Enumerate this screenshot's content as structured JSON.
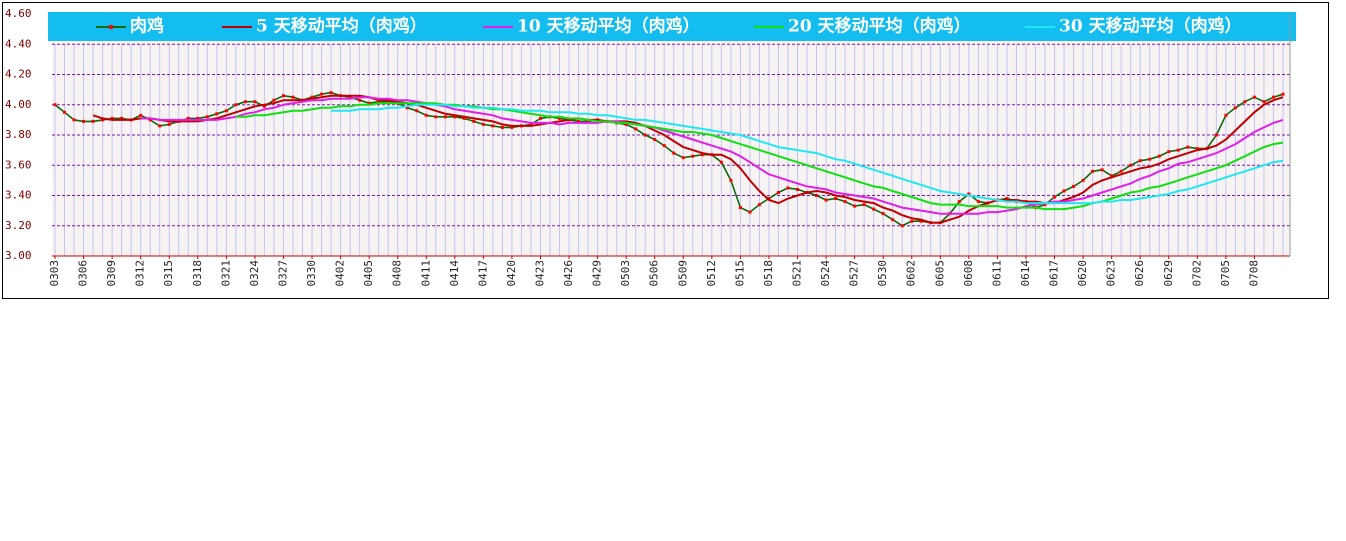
{
  "chart_data": {
    "type": "line",
    "categories": [
      "0303",
      null,
      null,
      "0306",
      null,
      null,
      "0309",
      null,
      null,
      "0312",
      null,
      null,
      "0315",
      null,
      null,
      "0318",
      null,
      null,
      "0321",
      null,
      null,
      "0324",
      null,
      null,
      "0327",
      null,
      null,
      "0330",
      null,
      null,
      "0402",
      null,
      null,
      "0405",
      null,
      null,
      "0408",
      null,
      null,
      "0411",
      null,
      null,
      "0414",
      null,
      null,
      "0417",
      null,
      null,
      "0420",
      null,
      null,
      "0423",
      null,
      null,
      "0426",
      null,
      null,
      "0429",
      null,
      null,
      "0503",
      null,
      null,
      "0506",
      null,
      null,
      "0509",
      null,
      null,
      "0512",
      null,
      null,
      "0515",
      null,
      null,
      "0518",
      null,
      null,
      "0521",
      null,
      null,
      "0524",
      null,
      null,
      "0527",
      null,
      null,
      "0530",
      null,
      null,
      "0602",
      null,
      null,
      "0605",
      null,
      null,
      "0608",
      null,
      null,
      "0611",
      null,
      null,
      "0614",
      null,
      null,
      "0617",
      null,
      null,
      "0620",
      null,
      null,
      "0623",
      null,
      null,
      "0626",
      null,
      null,
      "0629",
      null,
      null,
      "0702",
      null,
      null,
      "0705",
      null,
      null,
      "0708",
      null,
      null,
      null
    ],
    "ylim": [
      3.0,
      4.6
    ],
    "yticks": [
      {
        "value": 3.0,
        "label": "3.00"
      },
      {
        "value": 3.2,
        "label": "3.20"
      },
      {
        "value": 3.4,
        "label": "3.40"
      },
      {
        "value": 3.6,
        "label": "3.60"
      },
      {
        "value": 3.8,
        "label": "3.80"
      },
      {
        "value": 4.0,
        "label": "4.00"
      },
      {
        "value": 4.2,
        "label": "4.20"
      },
      {
        "value": 4.4,
        "label": "4.40"
      },
      {
        "value": 4.6,
        "label": "4.60"
      }
    ],
    "grid": true,
    "series": [
      {
        "name": "肉鸡",
        "color": "#0a6a0a",
        "marker_color": "#ff0000",
        "values": [
          4.0,
          3.95,
          3.9,
          3.89,
          3.89,
          3.9,
          3.91,
          3.91,
          3.9,
          3.93,
          3.9,
          3.86,
          3.87,
          3.89,
          3.91,
          3.91,
          3.92,
          3.94,
          3.96,
          4.0,
          4.02,
          4.02,
          3.99,
          4.03,
          4.06,
          4.05,
          4.03,
          4.05,
          4.07,
          4.08,
          4.06,
          4.05,
          4.03,
          4.01,
          4.02,
          4.02,
          4.01,
          3.98,
          3.96,
          3.93,
          3.92,
          3.92,
          3.92,
          3.91,
          3.89,
          3.87,
          3.86,
          3.85,
          3.85,
          3.86,
          3.87,
          3.91,
          3.92,
          3.91,
          3.9,
          3.89,
          3.89,
          3.9,
          3.89,
          3.88,
          3.87,
          3.84,
          3.8,
          3.77,
          3.73,
          3.68,
          3.65,
          3.66,
          3.67,
          3.67,
          3.62,
          3.5,
          3.32,
          3.29,
          3.34,
          3.38,
          3.42,
          3.45,
          3.44,
          3.42,
          3.4,
          3.37,
          3.38,
          3.36,
          3.33,
          3.34,
          3.31,
          3.28,
          3.24,
          3.2,
          3.23,
          3.23,
          3.22,
          3.22,
          3.28,
          3.36,
          3.41,
          3.36,
          3.35,
          3.37,
          3.38,
          3.36,
          3.36,
          3.32,
          3.34,
          3.39,
          3.43,
          3.46,
          3.5,
          3.56,
          3.57,
          3.53,
          3.56,
          3.6,
          3.63,
          3.64,
          3.66,
          3.69,
          3.7,
          3.72,
          3.71,
          3.71,
          3.8,
          3.93,
          3.98,
          4.02,
          4.05,
          4.02,
          4.05,
          4.07
        ]
      },
      {
        "name": "5 天移动平均（肉鸡）",
        "color": "#c00000",
        "values": [
          null,
          null,
          null,
          null,
          3.93,
          3.91,
          3.9,
          3.9,
          3.9,
          3.91,
          3.91,
          3.9,
          3.89,
          3.89,
          3.89,
          3.89,
          3.9,
          3.91,
          3.93,
          3.95,
          3.97,
          3.99,
          4.0,
          4.01,
          4.03,
          4.03,
          4.03,
          4.04,
          4.05,
          4.06,
          4.06,
          4.06,
          4.06,
          4.05,
          4.03,
          4.03,
          4.02,
          4.01,
          4.0,
          3.98,
          3.96,
          3.94,
          3.93,
          3.92,
          3.91,
          3.9,
          3.89,
          3.87,
          3.86,
          3.86,
          3.86,
          3.87,
          3.88,
          3.89,
          3.9,
          3.91,
          3.9,
          3.9,
          3.89,
          3.89,
          3.89,
          3.88,
          3.86,
          3.83,
          3.8,
          3.76,
          3.72,
          3.7,
          3.68,
          3.67,
          3.67,
          3.64,
          3.58,
          3.5,
          3.43,
          3.37,
          3.35,
          3.38,
          3.4,
          3.42,
          3.43,
          3.42,
          3.4,
          3.39,
          3.37,
          3.36,
          3.35,
          3.32,
          3.3,
          3.27,
          3.25,
          3.24,
          3.22,
          3.22,
          3.24,
          3.26,
          3.3,
          3.33,
          3.35,
          3.37,
          3.37,
          3.37,
          3.36,
          3.36,
          3.35,
          3.35,
          3.37,
          3.39,
          3.42,
          3.47,
          3.5,
          3.52,
          3.54,
          3.56,
          3.58,
          3.59,
          3.61,
          3.64,
          3.66,
          3.68,
          3.7,
          3.71,
          3.73,
          3.77,
          3.83,
          3.89,
          3.95,
          4.0,
          4.03,
          4.05
        ]
      },
      {
        "name": "10 天移动平均（肉鸡）",
        "color": "#e020e8",
        "values": [
          null,
          null,
          null,
          null,
          null,
          null,
          null,
          null,
          null,
          3.91,
          3.91,
          3.9,
          3.9,
          3.9,
          3.9,
          3.9,
          3.9,
          3.9,
          3.91,
          3.92,
          3.94,
          3.95,
          3.97,
          3.98,
          4.0,
          4.01,
          4.02,
          4.03,
          4.03,
          4.04,
          4.04,
          4.04,
          4.05,
          4.05,
          4.04,
          4.04,
          4.03,
          4.03,
          4.02,
          4.01,
          4.0,
          3.99,
          3.97,
          3.96,
          3.95,
          3.94,
          3.93,
          3.91,
          3.9,
          3.89,
          3.88,
          3.88,
          3.88,
          3.87,
          3.88,
          3.88,
          3.88,
          3.88,
          3.89,
          3.89,
          3.88,
          3.87,
          3.86,
          3.85,
          3.83,
          3.81,
          3.79,
          3.77,
          3.75,
          3.73,
          3.71,
          3.69,
          3.66,
          3.62,
          3.58,
          3.54,
          3.52,
          3.5,
          3.48,
          3.46,
          3.45,
          3.44,
          3.42,
          3.41,
          3.4,
          3.39,
          3.38,
          3.36,
          3.34,
          3.32,
          3.31,
          3.3,
          3.29,
          3.28,
          3.28,
          3.28,
          3.28,
          3.28,
          3.29,
          3.29,
          3.3,
          3.31,
          3.33,
          3.34,
          3.35,
          3.36,
          3.36,
          3.37,
          3.38,
          3.4,
          3.42,
          3.44,
          3.46,
          3.48,
          3.51,
          3.53,
          3.56,
          3.58,
          3.61,
          3.62,
          3.64,
          3.66,
          3.68,
          3.71,
          3.74,
          3.78,
          3.82,
          3.85,
          3.88,
          3.9
        ]
      },
      {
        "name": "20 天移动平均（肉鸡）",
        "color": "#10e010",
        "values": [
          null,
          null,
          null,
          null,
          null,
          null,
          null,
          null,
          null,
          null,
          null,
          null,
          null,
          null,
          null,
          null,
          null,
          null,
          null,
          3.92,
          3.92,
          3.93,
          3.93,
          3.94,
          3.95,
          3.96,
          3.96,
          3.97,
          3.98,
          3.98,
          3.99,
          3.99,
          4.0,
          4.0,
          4.01,
          4.01,
          4.01,
          4.01,
          4.01,
          4.01,
          4.01,
          4.0,
          4.0,
          3.99,
          3.99,
          3.98,
          3.97,
          3.97,
          3.96,
          3.95,
          3.94,
          3.93,
          3.92,
          3.92,
          3.91,
          3.91,
          3.9,
          3.89,
          3.89,
          3.88,
          3.88,
          3.87,
          3.86,
          3.85,
          3.84,
          3.83,
          3.82,
          3.82,
          3.81,
          3.8,
          3.78,
          3.76,
          3.74,
          3.72,
          3.7,
          3.68,
          3.66,
          3.64,
          3.62,
          3.6,
          3.58,
          3.56,
          3.54,
          3.52,
          3.5,
          3.48,
          3.46,
          3.45,
          3.43,
          3.41,
          3.39,
          3.37,
          3.35,
          3.34,
          3.34,
          3.34,
          3.33,
          3.33,
          3.33,
          3.33,
          3.32,
          3.32,
          3.32,
          3.32,
          3.31,
          3.31,
          3.31,
          3.32,
          3.33,
          3.35,
          3.36,
          3.38,
          3.4,
          3.42,
          3.43,
          3.45,
          3.46,
          3.48,
          3.5,
          3.52,
          3.54,
          3.56,
          3.58,
          3.6,
          3.63,
          3.66,
          3.69,
          3.72,
          3.74,
          3.75
        ]
      },
      {
        "name": "30 天移动平均（肉鸡）",
        "color": "#20e8f0",
        "values": [
          null,
          null,
          null,
          null,
          null,
          null,
          null,
          null,
          null,
          null,
          null,
          null,
          null,
          null,
          null,
          null,
          null,
          null,
          null,
          null,
          null,
          null,
          null,
          null,
          null,
          null,
          null,
          null,
          null,
          3.96,
          3.96,
          3.96,
          3.97,
          3.97,
          3.97,
          3.98,
          3.98,
          3.99,
          4.0,
          4.0,
          4.0,
          4.0,
          3.99,
          3.99,
          3.98,
          3.98,
          3.98,
          3.97,
          3.97,
          3.96,
          3.96,
          3.96,
          3.95,
          3.95,
          3.95,
          3.94,
          3.94,
          3.93,
          3.93,
          3.92,
          3.91,
          3.9,
          3.9,
          3.89,
          3.88,
          3.87,
          3.86,
          3.85,
          3.84,
          3.83,
          3.82,
          3.81,
          3.8,
          3.78,
          3.76,
          3.74,
          3.72,
          3.71,
          3.7,
          3.69,
          3.68,
          3.66,
          3.64,
          3.63,
          3.61,
          3.59,
          3.57,
          3.55,
          3.53,
          3.51,
          3.49,
          3.47,
          3.45,
          3.43,
          3.42,
          3.41,
          3.4,
          3.39,
          3.38,
          3.37,
          3.36,
          3.36,
          3.35,
          3.35,
          3.35,
          3.35,
          3.35,
          3.35,
          3.35,
          3.35,
          3.36,
          3.36,
          3.37,
          3.37,
          3.38,
          3.39,
          3.4,
          3.41,
          3.43,
          3.44,
          3.46,
          3.48,
          3.5,
          3.52,
          3.54,
          3.56,
          3.58,
          3.6,
          3.62,
          3.63
        ]
      }
    ]
  }
}
